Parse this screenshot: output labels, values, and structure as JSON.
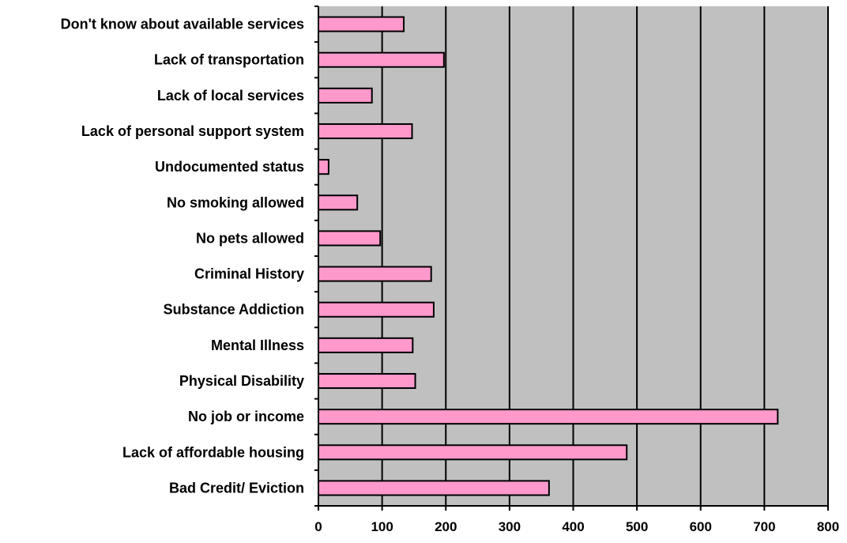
{
  "chart_data": {
    "type": "bar",
    "orientation": "horizontal",
    "title": "",
    "xlabel": "",
    "ylabel": "",
    "categories": [
      "Don't know about available services",
      "Lack of transportation",
      "Lack of local services",
      "Lack of personal support system",
      "Undocumented status",
      "No smoking allowed",
      "No pets allowed",
      "Criminal History",
      "Substance Addiction",
      "Mental Illness",
      "Physical Disability",
      "No job or income",
      "Lack of affordable housing",
      "Bad Credit/ Eviction"
    ],
    "values": [
      134,
      197,
      84,
      147,
      16,
      61,
      97,
      177,
      181,
      148,
      152,
      721,
      484,
      362
    ],
    "xlim": [
      0,
      800
    ],
    "xticks": [
      0,
      100,
      200,
      300,
      400,
      500,
      600,
      700,
      800
    ],
    "grid": true,
    "legend": "none",
    "colors": {
      "bar_fill": "#ff99cc",
      "bar_stroke": "#000000",
      "plot_background": "#c0c0c0",
      "gridline": "#000000"
    }
  }
}
